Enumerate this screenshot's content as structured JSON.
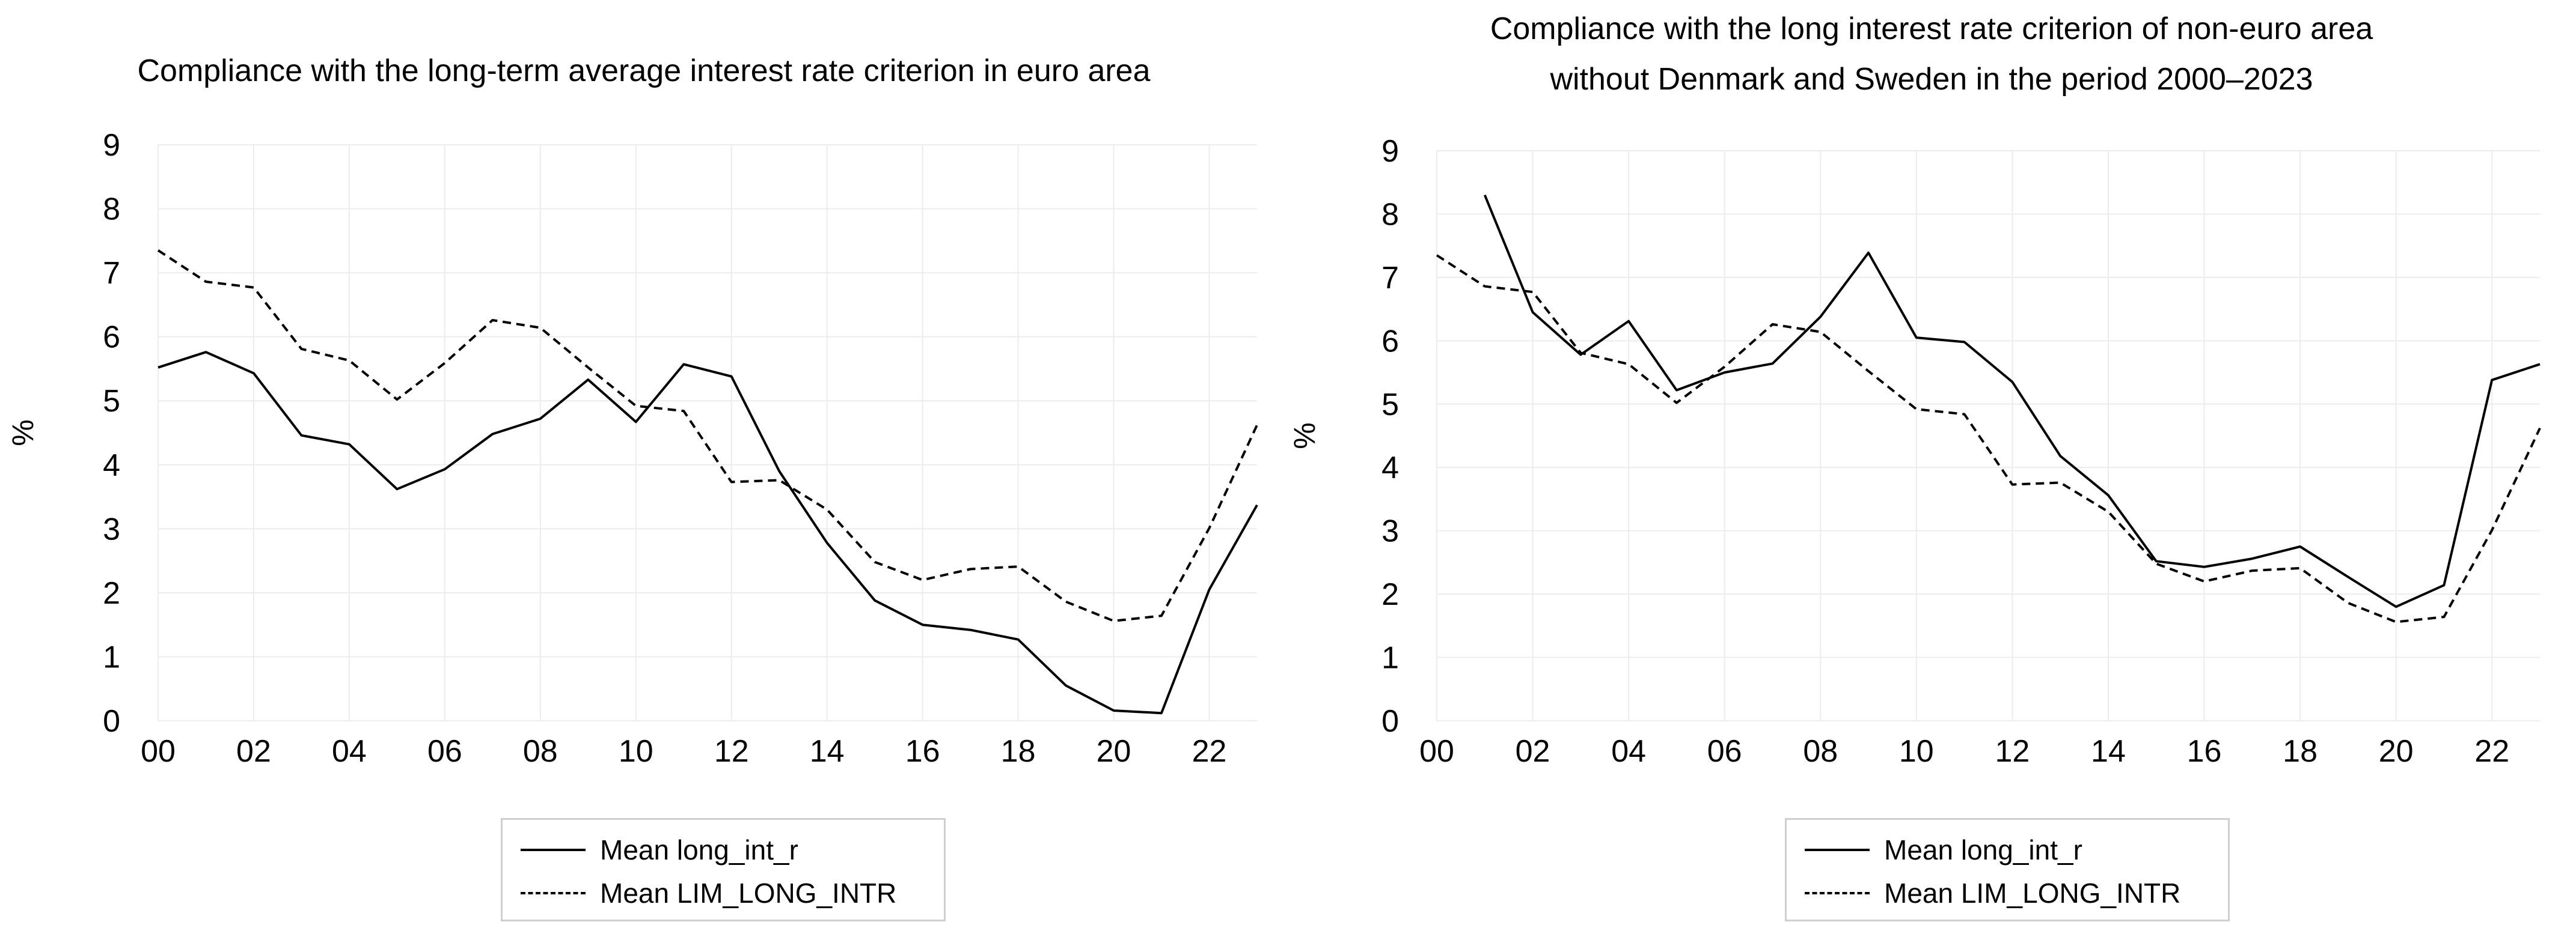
{
  "chart_data": [
    {
      "type": "line",
      "title": "Compliance with the long-term average interest rate criterion in euro area",
      "xlabel": "",
      "ylabel": "%",
      "x": [
        "00",
        "01",
        "02",
        "03",
        "04",
        "05",
        "06",
        "07",
        "08",
        "09",
        "10",
        "11",
        "12",
        "13",
        "14",
        "15",
        "16",
        "17",
        "18",
        "19",
        "20",
        "21",
        "22",
        "23"
      ],
      "x_tick_labels": [
        "00",
        "02",
        "04",
        "06",
        "08",
        "10",
        "12",
        "14",
        "16",
        "18",
        "20",
        "22"
      ],
      "y_tick_labels": [
        "0",
        "1",
        "2",
        "3",
        "4",
        "5",
        "6",
        "7",
        "8",
        "9"
      ],
      "ylim": [
        0,
        9
      ],
      "grid": true,
      "legend_position": "bottom",
      "series": [
        {
          "name": "Mean long_int_r",
          "style": "solid",
          "values": [
            5.52,
            5.76,
            5.43,
            4.46,
            4.32,
            3.62,
            3.93,
            4.48,
            4.72,
            5.33,
            4.67,
            5.57,
            5.38,
            3.9,
            2.78,
            1.88,
            1.5,
            1.42,
            1.27,
            0.55,
            0.16,
            0.12,
            2.05,
            3.37
          ]
        },
        {
          "name": "Mean LIM_LONG_INTR",
          "style": "dashed",
          "values": [
            7.35,
            6.86,
            6.77,
            5.81,
            5.63,
            5.02,
            5.59,
            6.26,
            6.14,
            5.52,
            4.92,
            4.84,
            3.73,
            3.76,
            3.3,
            2.48,
            2.2,
            2.37,
            2.41,
            1.86,
            1.56,
            1.64,
            3.01,
            4.62
          ]
        }
      ]
    },
    {
      "type": "line",
      "title": "Compliance with the long interest rate criterion of non-euro area without Denmark and Sweden in the period 2000–2023",
      "title_lines": [
        "Compliance with the long interest rate criterion of non-euro area",
        "without Denmark and Sweden in the period 2000–2023"
      ],
      "xlabel": "",
      "ylabel": "%",
      "x": [
        "00",
        "01",
        "02",
        "03",
        "04",
        "05",
        "06",
        "07",
        "08",
        "09",
        "10",
        "11",
        "12",
        "13",
        "14",
        "15",
        "16",
        "17",
        "18",
        "19",
        "20",
        "21",
        "22",
        "23"
      ],
      "x_tick_labels": [
        "00",
        "02",
        "04",
        "06",
        "08",
        "10",
        "12",
        "14",
        "16",
        "18",
        "20",
        "22"
      ],
      "y_tick_labels": [
        "0",
        "1",
        "2",
        "3",
        "4",
        "5",
        "6",
        "7",
        "8",
        "9"
      ],
      "ylim": [
        0,
        9
      ],
      "grid": true,
      "legend_position": "bottom",
      "series": [
        {
          "name": "Mean long_int_r",
          "style": "solid",
          "start_index": 1,
          "values": [
            null,
            8.3,
            6.45,
            5.78,
            6.31,
            5.22,
            5.5,
            5.64,
            6.38,
            7.39,
            6.05,
            5.98,
            5.35,
            4.18,
            3.56,
            2.52,
            2.43,
            2.56,
            2.75,
            2.27,
            1.8,
            2.14,
            5.38,
            5.63
          ]
        },
        {
          "name": "Mean LIM_LONG_INTR",
          "style": "dashed",
          "values": [
            7.35,
            6.86,
            6.77,
            5.81,
            5.63,
            5.02,
            5.59,
            6.26,
            6.14,
            5.52,
            4.92,
            4.84,
            3.73,
            3.76,
            3.3,
            2.48,
            2.2,
            2.37,
            2.41,
            1.86,
            1.56,
            1.64,
            3.01,
            4.62
          ]
        }
      ]
    }
  ]
}
